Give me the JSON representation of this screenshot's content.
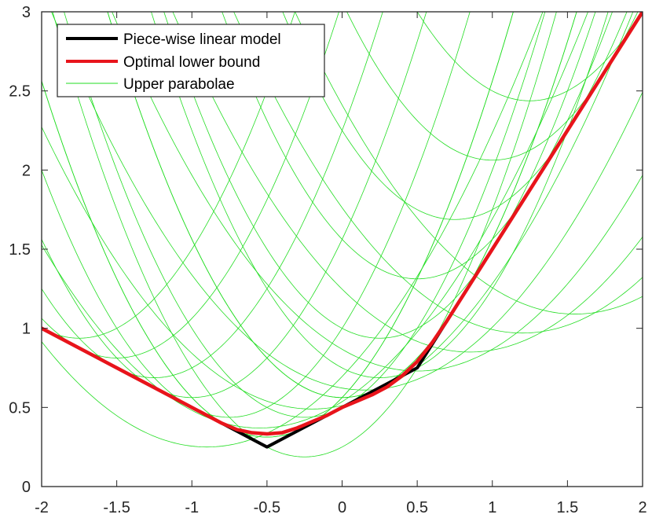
{
  "chart_data": {
    "type": "line",
    "title": "",
    "xlabel": "",
    "ylabel": "",
    "xlim": [
      -2,
      2
    ],
    "ylim": [
      0,
      3
    ],
    "x_ticks": [
      -2,
      -1.5,
      -1,
      -0.5,
      0,
      0.5,
      1,
      1.5,
      2
    ],
    "x_tick_labels": [
      "-2",
      "-1.5",
      "-1",
      "-0.5",
      "0",
      "0.5",
      "1",
      "1.5",
      "2"
    ],
    "y_ticks": [
      0,
      0.5,
      1,
      1.5,
      2,
      2.5,
      3
    ],
    "y_tick_labels": [
      "0",
      "0.5",
      "1",
      "1.5",
      "2",
      "2.5",
      "3"
    ],
    "grid": false,
    "legend_position": "top-left",
    "series": [
      {
        "name": "Piece-wise linear model",
        "color": "#000000",
        "x": [
          -2,
          -0.5,
          0.5,
          2
        ],
        "y": [
          1,
          0.25,
          0.75,
          3
        ]
      },
      {
        "name": "Optimal lower bound",
        "color": "#e8141b",
        "x": [
          -2,
          -1.5,
          -1,
          -0.8,
          -0.7,
          -0.6,
          -0.5,
          -0.4,
          -0.3,
          -0.2,
          -0.1,
          0,
          0.1,
          0.2,
          0.3,
          0.4,
          0.5,
          0.6,
          0.7,
          0.8,
          0.9,
          1,
          1.5,
          2
        ],
        "y": [
          1,
          0.75,
          0.5,
          0.4,
          0.36,
          0.34,
          0.333,
          0.34,
          0.37,
          0.41,
          0.45,
          0.5,
          0.54,
          0.58,
          0.63,
          0.7,
          0.79,
          0.91,
          1.05,
          1.2,
          1.35,
          1.5,
          2.25,
          3
        ]
      },
      {
        "name": "Upper parabolae",
        "color": "#22dd22",
        "family": "upper parabolae",
        "x": [
          -2,
          -1,
          -0.5,
          0,
          0.5,
          1,
          1.5,
          2
        ],
        "y": [
          1.0,
          0.5,
          0.333,
          0.5,
          0.75,
          1.5,
          2.25,
          3.0
        ]
      }
    ]
  }
}
